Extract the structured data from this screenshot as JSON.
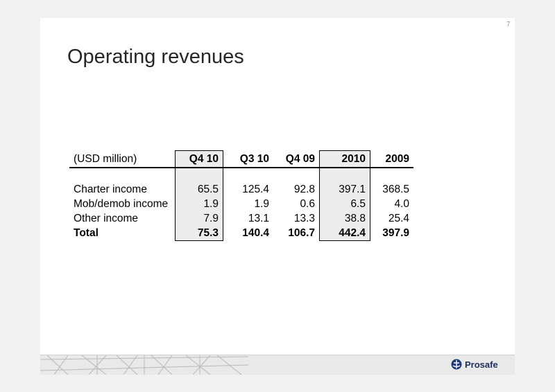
{
  "slide": {
    "page_number": "7",
    "title": "Operating revenues"
  },
  "table": {
    "unit_label": "(USD million)",
    "headers": [
      "Q4 10",
      "Q3 10",
      "Q4 09",
      "2010",
      "2009"
    ],
    "highlighted_columns": [
      "Q4 10",
      "2010"
    ],
    "rows": [
      {
        "label": "Charter income",
        "values": [
          "65.5",
          "125.4",
          "92.8",
          "397.1",
          "368.5"
        ]
      },
      {
        "label": "Mob/demob income",
        "values": [
          "1.9",
          "1.9",
          "0.6",
          "6.5",
          "4.0"
        ]
      },
      {
        "label": "Other income",
        "values": [
          "7.9",
          "13.1",
          "13.3",
          "38.8",
          "25.4"
        ]
      },
      {
        "label": "Total",
        "values": [
          "75.3",
          "140.4",
          "106.7",
          "442.4",
          "397.9"
        ]
      }
    ]
  },
  "footer": {
    "logo_text": "Prosafe",
    "logo_icon": "prosafe-logo-icon",
    "brand_color": "#1f3a78"
  }
}
